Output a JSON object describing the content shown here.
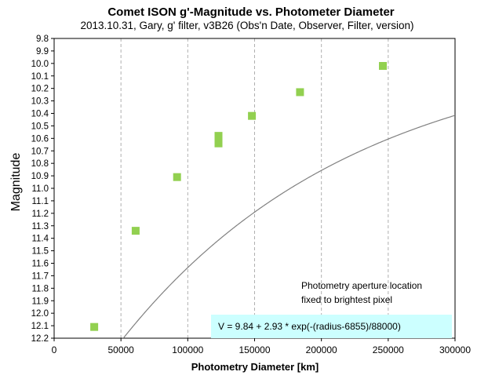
{
  "chart_data": {
    "type": "scatter",
    "title": "Comet ISON g'-Magnitude vs. Photometer Diameter",
    "subtitle": "2013.10.31,  Gary,  g' filter,  v3B26 (Obs'n Date, Observer, Filter, version)",
    "xlabel": "Photometry Diameter  [km]",
    "ylabel": "Magnitude",
    "xlim": [
      0,
      300000
    ],
    "ylim": [
      9.8,
      12.2
    ],
    "y_inverted": true,
    "x_ticks": [
      0,
      50000,
      100000,
      150000,
      200000,
      250000,
      300000
    ],
    "y_ticks": [
      "9.8",
      "9.9",
      "10.0",
      "10.1",
      "10.2",
      "10.3",
      "10.4",
      "10.5",
      "10.6",
      "10.7",
      "10.8",
      "10.9",
      "11.0",
      "11.1",
      "11.2",
      "11.3",
      "11.4",
      "11.5",
      "11.6",
      "11.7",
      "11.8",
      "11.9",
      "12.0",
      "12.1",
      "12.2"
    ],
    "grid": "vertical-dashed",
    "series": [
      {
        "marker": "square",
        "color": "#92d050",
        "points": [
          {
            "x": 30000,
            "y": 12.11
          },
          {
            "x": 61000,
            "y": 11.34
          },
          {
            "x": 92000,
            "y": 10.91
          },
          {
            "x": 123000,
            "y": 10.58
          },
          {
            "x": 123000,
            "y": 10.64
          },
          {
            "x": 148000,
            "y": 10.42
          },
          {
            "x": 184000,
            "y": 10.23
          },
          {
            "x": 246000,
            "y": 10.02
          }
        ]
      }
    ],
    "fit": {
      "color": "#808080",
      "a": 9.84,
      "b": 2.93,
      "x0": 6855,
      "scale": 88000,
      "diameter_per_radius": 2
    },
    "annotations": {
      "note_line1": "Photometry aperture location",
      "note_line2": "fixed to brightest pixel",
      "equation": "V = 9.84 + 2.93 * exp(-(radius-6855)/88000)",
      "equation_bg": "#ccffff"
    }
  }
}
